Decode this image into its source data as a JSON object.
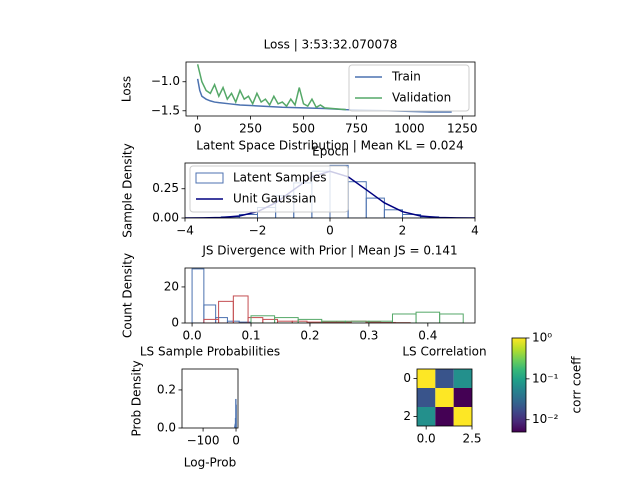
{
  "chart_data": [
    {
      "type": "line",
      "title": "Loss | 3:53:32.070078",
      "xlabel": "Epoch",
      "ylabel": "Loss",
      "xlim": [
        -55,
        1310
      ],
      "xticks": [
        0,
        250,
        500,
        750,
        1000,
        1250
      ],
      "ylim": [
        -1.59,
        -0.66
      ],
      "yticks": [
        {
          "value": -1.0,
          "label": "−1.0"
        },
        {
          "value": -1.5,
          "label": "−1.5"
        }
      ],
      "legend": "upper right",
      "series": [
        {
          "name": "Train",
          "type": "line",
          "color": "#4c72b0",
          "x": [
            0,
            10,
            20,
            40,
            60,
            80,
            100,
            150,
            200,
            250,
            300,
            400,
            500,
            600,
            700,
            800,
            900,
            1000,
            1100,
            1200
          ],
          "values": [
            -0.95,
            -1.15,
            -1.25,
            -1.3,
            -1.33,
            -1.35,
            -1.36,
            -1.38,
            -1.4,
            -1.41,
            -1.42,
            -1.44,
            -1.45,
            -1.46,
            -1.48,
            -1.49,
            -1.5,
            -1.51,
            -1.52,
            -1.52
          ]
        },
        {
          "name": "Validation",
          "type": "line",
          "color": "#55a868",
          "x": [
            0,
            20,
            40,
            60,
            80,
            100,
            120,
            140,
            160,
            180,
            200,
            220,
            240,
            260,
            280,
            300,
            320,
            340,
            360,
            380,
            400,
            420,
            440,
            460,
            480,
            500,
            520,
            540,
            560,
            580,
            600,
            700
          ],
          "values": [
            -0.7,
            -1.0,
            -1.15,
            -1.2,
            -1.05,
            -1.25,
            -1.1,
            -1.3,
            -1.2,
            -1.35,
            -1.15,
            -1.3,
            -1.25,
            -1.38,
            -1.2,
            -1.35,
            -1.3,
            -1.4,
            -1.25,
            -1.38,
            -1.35,
            -1.42,
            -1.3,
            -1.4,
            -1.1,
            -1.38,
            -1.42,
            -1.3,
            -1.44,
            -1.4,
            -1.45,
            -1.48
          ]
        }
      ]
    },
    {
      "type": "histogram",
      "title": "Latent Space Distribution | Mean KL = 0.024",
      "ylabel": "Sample Density",
      "xlim": [
        -4,
        4
      ],
      "xticks": [
        {
          "value": -4,
          "label": "−4"
        },
        {
          "value": -2,
          "label": "−2"
        },
        0,
        2,
        4
      ],
      "ylim": [
        0,
        0.47
      ],
      "yticks": [
        {
          "value": 0,
          "label": "0.00"
        },
        {
          "value": 0.25,
          "label": "0.25"
        }
      ],
      "legend": "upper left",
      "series": [
        {
          "name": "Latent Samples",
          "type": "histogram",
          "color": "#4c72b0",
          "bins": [
            -3,
            -2.5,
            -2,
            -1.5,
            -1,
            -0.5,
            0,
            0.5,
            1,
            1.5,
            2,
            2.5,
            3
          ],
          "values": [
            0.01,
            0.03,
            0.09,
            0.19,
            0.3,
            0.4,
            0.45,
            0.31,
            0.17,
            0.07,
            0.03,
            0.01
          ]
        },
        {
          "name": "Unit Gaussian",
          "type": "line",
          "color": "#000080",
          "x": [
            -4,
            -3.5,
            -3,
            -2.5,
            -2,
            -1.5,
            -1,
            -0.5,
            0,
            0.5,
            1,
            1.5,
            2,
            2.5,
            3,
            3.5,
            4
          ],
          "values": [
            0.0001,
            0.0009,
            0.0044,
            0.0175,
            0.054,
            0.1295,
            0.242,
            0.3521,
            0.3989,
            0.3521,
            0.242,
            0.1295,
            0.054,
            0.0175,
            0.0044,
            0.0009,
            0.0001
          ]
        }
      ]
    },
    {
      "type": "histogram",
      "title": "JS Divergence with Prior | Mean JS = 0.141",
      "ylabel": "Count Density",
      "xlim": [
        -0.012,
        0.48
      ],
      "xticks": [
        {
          "value": 0,
          "label": "0.0"
        },
        0.1,
        0.2,
        0.3,
        0.4
      ],
      "ylim": [
        0,
        30.5
      ],
      "yticks": [
        0,
        20
      ],
      "series": [
        {
          "type": "histogram",
          "color": "#4c72b0",
          "bins": [
            0,
            0.02,
            0.04,
            0.06,
            0.08,
            0.1
          ],
          "values": [
            30,
            10,
            3,
            1,
            0.5
          ]
        },
        {
          "type": "histogram",
          "color": "#c44e52",
          "bins": [
            0.02,
            0.045,
            0.07,
            0.095,
            0.12,
            0.145,
            0.17,
            0.195,
            0.22,
            0.245,
            0.27,
            0.295,
            0.32,
            0.345,
            0.37
          ],
          "values": [
            2,
            12,
            15,
            3,
            2,
            1,
            1,
            0.5,
            0.5,
            0.5,
            1,
            0.5,
            0.3,
            0.2
          ]
        },
        {
          "type": "histogram",
          "color": "#55a868",
          "bins": [
            0.1,
            0.14,
            0.18,
            0.22,
            0.26,
            0.3,
            0.34,
            0.38,
            0.42,
            0.46
          ],
          "values": [
            4,
            3,
            2,
            1,
            1,
            1,
            5,
            6,
            5
          ]
        }
      ]
    },
    {
      "type": "histogram",
      "title": "LS Sample Probabilities",
      "xlabel": "Log-Prob",
      "ylabel": "Prob Density",
      "xlim": [
        -164,
        6
      ],
      "xticks": [
        {
          "value": -100,
          "label": "−100"
        },
        0
      ],
      "ylim": [
        0,
        0.31
      ],
      "yticks": [
        {
          "value": 0,
          "label": "0.0"
        },
        0.2
      ],
      "series": [
        {
          "type": "histogram",
          "color": "#4c72b0",
          "bins": [
            -4,
            -3,
            -2,
            -1,
            0,
            1
          ],
          "values": [
            0.01,
            0.02,
            0.05,
            0.15,
            0.12
          ]
        }
      ]
    },
    {
      "type": "heatmap",
      "title": "LS Correlation",
      "xlim": [
        -0.5,
        2.5
      ],
      "xticks": [
        {
          "value": 0,
          "label": "0.0"
        },
        2.5
      ],
      "ylim": [
        2.5,
        -0.5
      ],
      "yticks": [
        0,
        2
      ],
      "z": [
        [
          1,
          0.02,
          0.07
        ],
        [
          0.02,
          1,
          0.005
        ],
        [
          0.07,
          0.005,
          1
        ]
      ],
      "colormap": "viridis",
      "clog": true,
      "clim": [
        0.005,
        1
      ],
      "cticks": [
        {
          "value": 1,
          "label": "10⁰"
        },
        {
          "value": 0.1,
          "label": "10⁻¹"
        },
        {
          "value": 0.01,
          "label": "10⁻²"
        }
      ],
      "clabel": "corr coeff"
    }
  ]
}
